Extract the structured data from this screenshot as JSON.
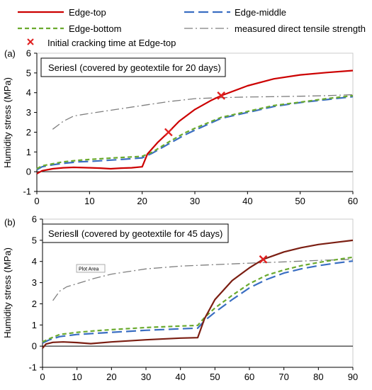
{
  "legend": {
    "items": [
      {
        "label": "Edge-top",
        "color": "#cc0000",
        "dash": "solid"
      },
      {
        "label": "Edge-middle",
        "color": "#3a6ec2",
        "dash": "long"
      },
      {
        "label": "Edge-bottom",
        "color": "#6aaa2e",
        "dash": "short"
      },
      {
        "label": "measured direct tensile strength",
        "color": "#7f7f7f",
        "dash": "dashdot"
      },
      {
        "label": "Initial cracking time at Edge-top",
        "color": "#e02020",
        "marker": "x"
      }
    ]
  },
  "chart_data": [
    {
      "type": "line",
      "panel_label": "(a)",
      "series_box": "SeriesⅠ  (covered by geotextile for 20 days)",
      "xlabel": "",
      "ylabel": "Humidity stress (MPa)",
      "xlim": [
        0,
        60
      ],
      "ylim": [
        -1,
        6
      ],
      "xticks": [
        0,
        10,
        20,
        30,
        40,
        50,
        60
      ],
      "yticks": [
        -1,
        0,
        1,
        2,
        3,
        4,
        5,
        6
      ],
      "annotations": [],
      "series": [
        {
          "name": "Edge-top",
          "color": "#cc0000",
          "x": [
            0,
            1,
            3,
            5,
            7,
            10,
            12,
            14,
            16,
            18,
            20,
            21,
            23,
            25,
            27,
            30,
            33,
            35,
            40,
            45,
            50,
            55,
            60
          ],
          "y": [
            -0.1,
            0.05,
            0.15,
            0.2,
            0.22,
            0.2,
            0.18,
            0.15,
            0.18,
            0.2,
            0.25,
            0.9,
            1.5,
            2.0,
            2.55,
            3.15,
            3.6,
            3.85,
            4.35,
            4.7,
            4.9,
            5.02,
            5.12
          ]
        },
        {
          "name": "Edge-middle",
          "color": "#3a6ec2",
          "x": [
            0,
            1,
            3,
            5,
            8,
            10,
            13,
            16,
            18,
            20,
            22,
            25,
            28,
            30,
            35,
            40,
            45,
            50,
            55,
            60
          ],
          "y": [
            0.1,
            0.25,
            0.35,
            0.42,
            0.5,
            0.52,
            0.57,
            0.62,
            0.66,
            0.7,
            0.95,
            1.4,
            1.85,
            2.1,
            2.7,
            3.0,
            3.3,
            3.5,
            3.65,
            3.8
          ]
        },
        {
          "name": "Edge-bottom",
          "color": "#6aaa2e",
          "x": [
            0,
            1,
            3,
            5,
            8,
            10,
            13,
            16,
            18,
            20,
            22,
            25,
            28,
            30,
            35,
            40,
            45,
            50,
            55,
            60
          ],
          "y": [
            0.15,
            0.3,
            0.4,
            0.5,
            0.58,
            0.62,
            0.67,
            0.72,
            0.75,
            0.78,
            1.0,
            1.5,
            1.95,
            2.2,
            2.75,
            3.05,
            3.35,
            3.52,
            3.7,
            3.85
          ]
        },
        {
          "name": "measured direct tensile strength",
          "color": "#7f7f7f",
          "x": [
            3,
            5,
            7,
            10,
            15,
            20,
            25,
            30,
            35,
            40,
            45,
            50,
            55,
            60
          ],
          "y": [
            2.15,
            2.55,
            2.82,
            2.95,
            3.15,
            3.35,
            3.55,
            3.7,
            3.75,
            3.78,
            3.8,
            3.82,
            3.85,
            3.9
          ]
        }
      ],
      "crack_markers": [
        {
          "x": 25,
          "y": 2.0
        },
        {
          "x": 35,
          "y": 3.85
        }
      ]
    },
    {
      "type": "line",
      "panel_label": "(b)",
      "series_box": "SeriesⅡ  (covered by geotextile for 45 days)",
      "xlabel": "",
      "ylabel": "Humidity stress (MPa)",
      "xlim": [
        0,
        90
      ],
      "ylim": [
        -1,
        6
      ],
      "xticks": [
        0,
        10,
        20,
        30,
        40,
        50,
        60,
        70,
        80,
        90
      ],
      "yticks": [
        -1,
        0,
        1,
        2,
        3,
        4,
        5,
        6
      ],
      "annotations": [
        "Plot Area"
      ],
      "series": [
        {
          "name": "Edge-top",
          "color": "#7b1e12",
          "x": [
            0,
            1,
            3,
            6,
            10,
            14,
            20,
            30,
            40,
            45,
            47,
            50,
            55,
            60,
            64,
            70,
            75,
            80,
            85,
            90
          ],
          "y": [
            -0.1,
            0.1,
            0.18,
            0.2,
            0.17,
            0.12,
            0.2,
            0.3,
            0.38,
            0.4,
            1.3,
            2.2,
            3.1,
            3.7,
            4.1,
            4.45,
            4.65,
            4.8,
            4.9,
            5.0
          ]
        },
        {
          "name": "Edge-middle",
          "color": "#3a6ec2",
          "x": [
            0,
            2,
            5,
            10,
            15,
            20,
            30,
            40,
            45,
            47,
            50,
            55,
            60,
            65,
            70,
            75,
            80,
            85,
            90
          ],
          "y": [
            0.15,
            0.3,
            0.45,
            0.55,
            0.6,
            0.65,
            0.75,
            0.82,
            0.85,
            1.2,
            1.6,
            2.2,
            2.75,
            3.15,
            3.45,
            3.65,
            3.8,
            3.92,
            4.02
          ]
        },
        {
          "name": "Edge-bottom",
          "color": "#6aaa2e",
          "x": [
            0,
            2,
            5,
            10,
            15,
            20,
            30,
            40,
            45,
            47,
            50,
            55,
            60,
            65,
            70,
            75,
            80,
            85,
            90
          ],
          "y": [
            0.2,
            0.35,
            0.55,
            0.65,
            0.72,
            0.78,
            0.88,
            0.95,
            0.98,
            1.35,
            1.8,
            2.4,
            2.95,
            3.35,
            3.6,
            3.8,
            3.95,
            4.08,
            4.2
          ]
        },
        {
          "name": "measured direct tensile strength",
          "color": "#7f7f7f",
          "x": [
            3,
            5,
            7,
            10,
            15,
            20,
            30,
            40,
            50,
            60,
            70,
            80,
            90
          ],
          "y": [
            2.15,
            2.6,
            2.8,
            2.95,
            3.2,
            3.4,
            3.65,
            3.78,
            3.85,
            3.92,
            3.98,
            4.05,
            4.1
          ]
        }
      ],
      "crack_markers": [
        {
          "x": 64,
          "y": 4.1
        }
      ]
    }
  ]
}
